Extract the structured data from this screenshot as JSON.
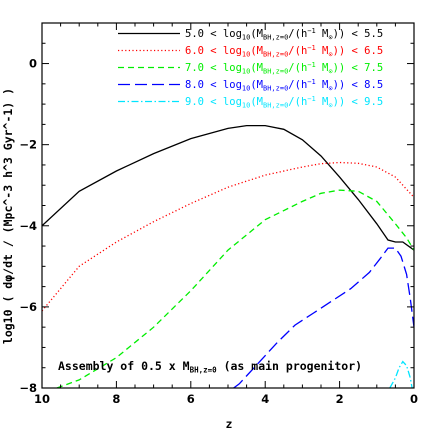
{
  "chart_data": {
    "type": "line",
    "xlabel": "z",
    "ylabel": "log10 ( dφ/dt / (Mpc^-3 h^3 Gyr^-1) )",
    "xlim": [
      10,
      0
    ],
    "ylim": [
      -8,
      1
    ],
    "xticks": [
      10,
      8,
      6,
      4,
      2,
      0
    ],
    "yticks": [
      0,
      -2,
      -4,
      -6,
      -8
    ],
    "annotation": {
      "prefix": "Assembly of 0.5 x M",
      "sub": "BH,z=0",
      "suffix": " (as main progenitor)"
    },
    "legend_position": "top-right",
    "series": [
      {
        "lo": "5.0",
        "hi": "5.5",
        "color": "#000000",
        "dash": "",
        "x": [
          10,
          9,
          8,
          7,
          6,
          5,
          4.5,
          4,
          3.5,
          3,
          2.5,
          2,
          1.5,
          1,
          0.7,
          0.5,
          0.3,
          0
        ],
        "y": [
          -4.0,
          -3.15,
          -2.65,
          -2.22,
          -1.85,
          -1.6,
          -1.53,
          -1.53,
          -1.62,
          -1.88,
          -2.28,
          -2.8,
          -3.35,
          -3.95,
          -4.35,
          -4.4,
          -4.4,
          -4.6
        ]
      },
      {
        "lo": "6.0",
        "hi": "6.5",
        "color": "#ff0000",
        "dash": "1.2,2.4",
        "x": [
          10,
          9,
          8,
          7,
          6,
          5,
          4,
          3,
          2.5,
          2,
          1.5,
          1,
          0.5,
          0.2,
          0
        ],
        "y": [
          -6.1,
          -5.0,
          -4.4,
          -3.9,
          -3.45,
          -3.05,
          -2.75,
          -2.55,
          -2.47,
          -2.44,
          -2.46,
          -2.55,
          -2.8,
          -3.1,
          -3.3
        ]
      },
      {
        "lo": "7.0",
        "hi": "7.5",
        "color": "#00ee00",
        "dash": "6,4",
        "x": [
          9.6,
          9,
          8,
          7,
          6,
          5,
          4,
          3,
          2.5,
          2,
          1.5,
          1,
          0.5,
          0.2,
          0
        ],
        "y": [
          -8.0,
          -7.8,
          -7.25,
          -6.5,
          -5.6,
          -4.6,
          -3.85,
          -3.4,
          -3.2,
          -3.12,
          -3.15,
          -3.4,
          -3.95,
          -4.3,
          -4.6
        ]
      },
      {
        "lo": "8.0",
        "hi": "8.5",
        "color": "#0000ff",
        "dash": "12,5",
        "x": [
          4.85,
          4.7,
          4.2,
          3.7,
          3.2,
          2.7,
          2.2,
          1.7,
          1.2,
          0.9,
          0.7,
          0.5,
          0.35,
          0.2,
          0.1,
          0
        ],
        "y": [
          -8.0,
          -7.9,
          -7.4,
          -6.9,
          -6.45,
          -6.15,
          -5.85,
          -5.55,
          -5.15,
          -4.8,
          -4.55,
          -4.55,
          -4.75,
          -5.2,
          -5.8,
          -6.5
        ]
      },
      {
        "lo": "9.0",
        "hi": "9.5",
        "color": "#00e5ff",
        "dash": "7,2.5,1.5,2.5",
        "x": [
          0.65,
          0.5,
          0.4,
          0.3,
          0.2,
          0.1,
          0.05,
          0
        ],
        "y": [
          -8.0,
          -7.75,
          -7.5,
          -7.35,
          -7.45,
          -7.75,
          -8.0,
          -8.0
        ]
      }
    ]
  }
}
